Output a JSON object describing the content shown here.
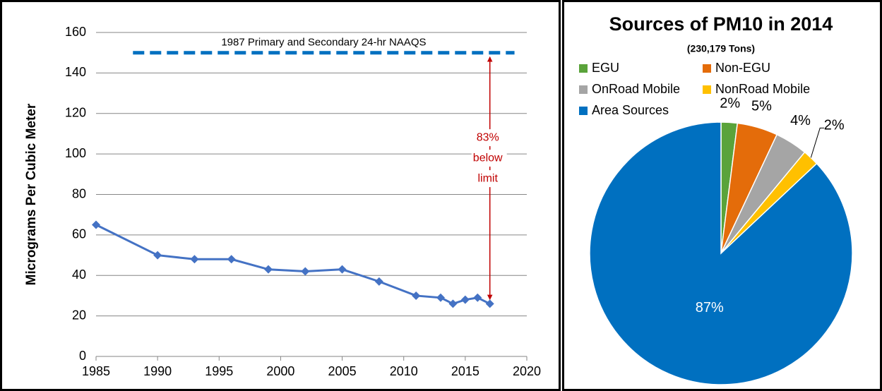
{
  "chart_data": [
    {
      "type": "line",
      "y_label": "Micrograms Per Cubic Meter",
      "x": [
        1985,
        1990,
        1993,
        1996,
        1999,
        2002,
        2005,
        2008,
        2011,
        2013,
        2014,
        2015,
        2016,
        2017
      ],
      "values": [
        65,
        50,
        48,
        48,
        43,
        42,
        43,
        37,
        30,
        29,
        26,
        28,
        29,
        26
      ],
      "color": "#4472c4",
      "xlim": [
        1985,
        2020
      ],
      "xticks": [
        1985,
        1990,
        1995,
        2000,
        2005,
        2010,
        2015,
        2020
      ],
      "ylim": [
        0,
        160
      ],
      "yticks": [
        0,
        20,
        40,
        60,
        80,
        100,
        120,
        140,
        160
      ],
      "grid": true,
      "reference": {
        "value": 150,
        "label": "1987 Primary and Secondary 24-hr NAAQS",
        "x_range": [
          1988,
          2019
        ],
        "color": "#0070c0"
      },
      "annotation": {
        "lines": [
          "83%",
          "below",
          "limit"
        ],
        "x": 2017,
        "color": "#c00000"
      }
    },
    {
      "type": "pie",
      "title": "Sources of PM10 in 2014",
      "subtitle": "(230,179 Tons)",
      "categories": [
        "EGU",
        "Non-EGU",
        "OnRoad Mobile",
        "NonRoad Mobile",
        "Area Sources"
      ],
      "values": [
        2,
        5,
        4,
        2,
        87
      ],
      "value_labels": [
        "2%",
        "5%",
        "4%",
        "2%",
        "87%"
      ],
      "colors": [
        "#5aa33a",
        "#e46c0a",
        "#a5a5a5",
        "#ffc000",
        "#0070c0"
      ]
    }
  ]
}
